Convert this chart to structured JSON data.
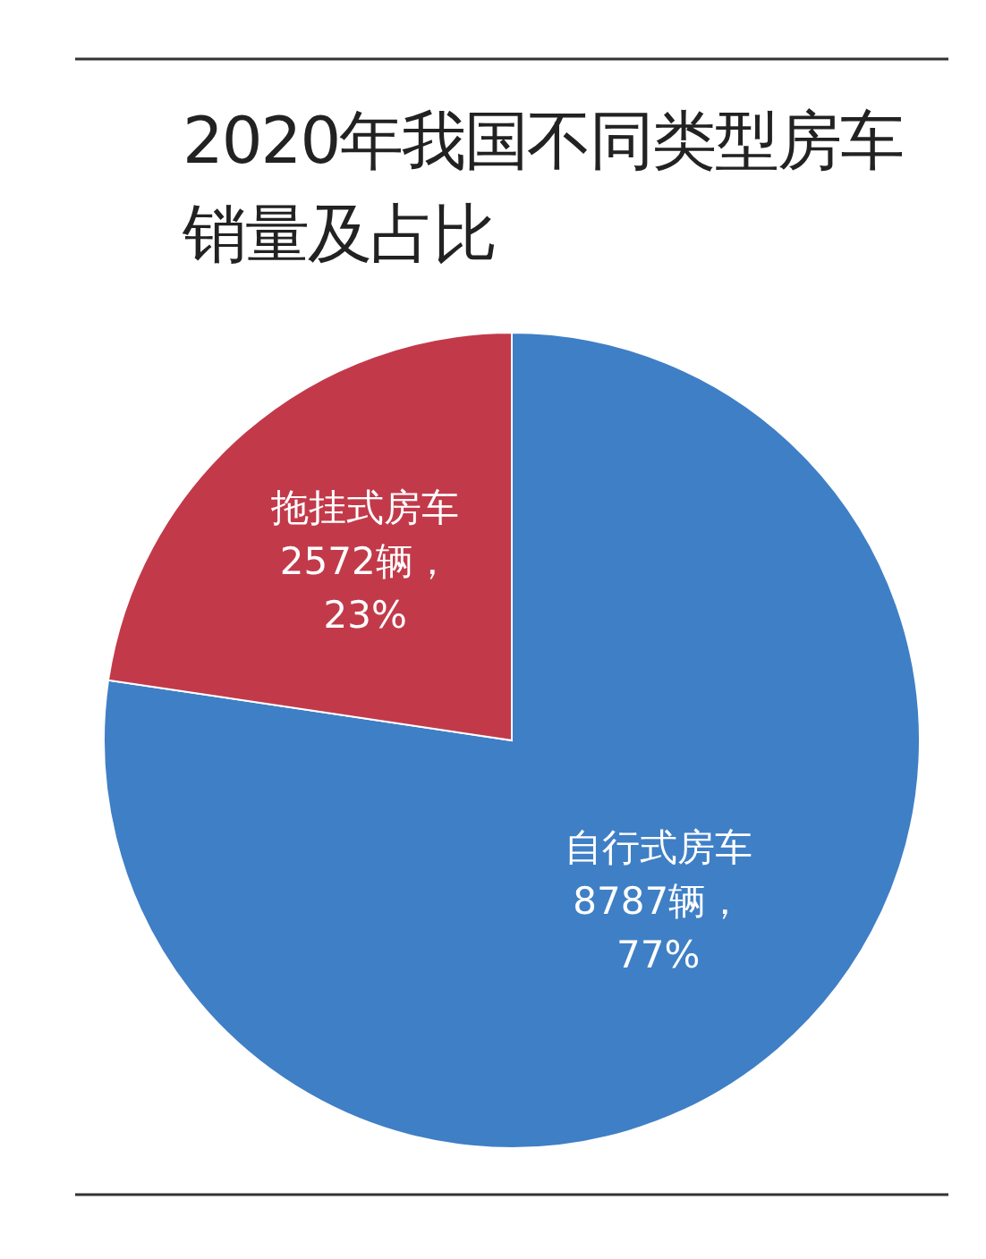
{
  "chart_data": {
    "type": "pie",
    "title": "2020年我国不同类型房车销量及占比",
    "categories": [
      "自行式房车",
      "拖挂式房车"
    ],
    "values": [
      8787,
      2572
    ],
    "colors": [
      "#3f7fc6",
      "#c23a4a"
    ],
    "value_labels": [
      "8787辆，\n77%",
      "2572辆，\n23%"
    ]
  }
}
